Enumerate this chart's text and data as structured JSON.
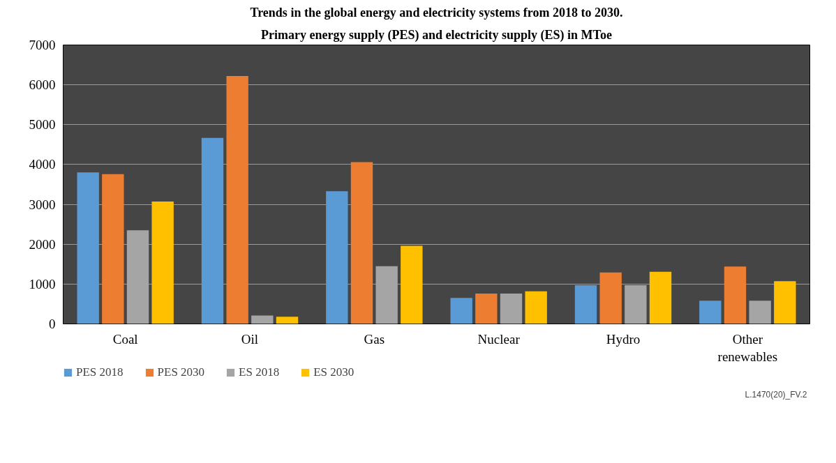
{
  "chart_data": {
    "type": "bar",
    "title": "Trends in the global energy and electricity systems from 2018 to 2030.",
    "subtitle": "Primary energy supply (PES) and electricity supply (ES) in MToe",
    "categories": [
      "Coal",
      "Oil",
      "Gas",
      "Nuclear",
      "Hydro",
      "Other renewables"
    ],
    "series": [
      {
        "name": "PES 2018",
        "color": "#5b9bd5",
        "values": [
          3800,
          4670,
          3330,
          650,
          970,
          580
        ]
      },
      {
        "name": "PES 2030",
        "color": "#ed7d31",
        "values": [
          3760,
          6220,
          4060,
          760,
          1290,
          1440
        ]
      },
      {
        "name": "ES 2018",
        "color": "#a5a5a5",
        "values": [
          2350,
          210,
          1450,
          760,
          970,
          580
        ]
      },
      {
        "name": "ES 2030",
        "color": "#ffc000",
        "values": [
          3070,
          180,
          1960,
          820,
          1310,
          1070
        ]
      }
    ],
    "ylim": [
      0,
      7000
    ],
    "yticks": [
      0,
      1000,
      2000,
      3000,
      4000,
      5000,
      6000,
      7000
    ],
    "grid": "y",
    "legend": "bottom left",
    "annotations": [
      "L.1470(20)_FV.2"
    ]
  }
}
